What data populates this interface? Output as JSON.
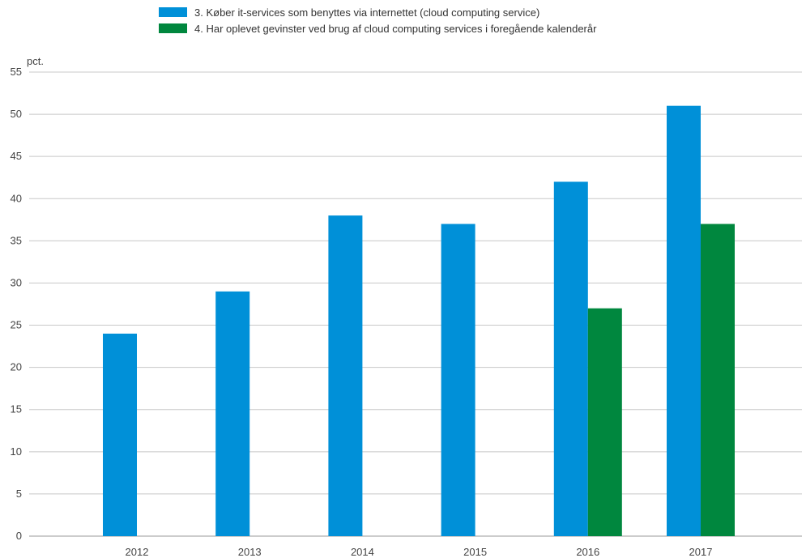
{
  "chart_data": {
    "type": "bar",
    "unit_label": "pct.",
    "categories": [
      "2012",
      "2013",
      "2014",
      "2015",
      "2016",
      "2017"
    ],
    "series": [
      {
        "name": "3. Køber it-services som benyttes via internettet (cloud computing service)",
        "color": "#0090d8",
        "values": [
          24,
          29,
          38,
          37,
          42,
          51
        ]
      },
      {
        "name": "4. Har oplevet gevinster ved brug af cloud computing services i foregående kalenderår",
        "color": "#00873e",
        "values": [
          null,
          null,
          null,
          null,
          27,
          37
        ]
      }
    ],
    "ylim": [
      0,
      55
    ],
    "yticks": [
      0,
      5,
      10,
      15,
      20,
      25,
      30,
      35,
      40,
      45,
      50,
      55
    ],
    "grid": true,
    "legend_position": "top-center"
  }
}
